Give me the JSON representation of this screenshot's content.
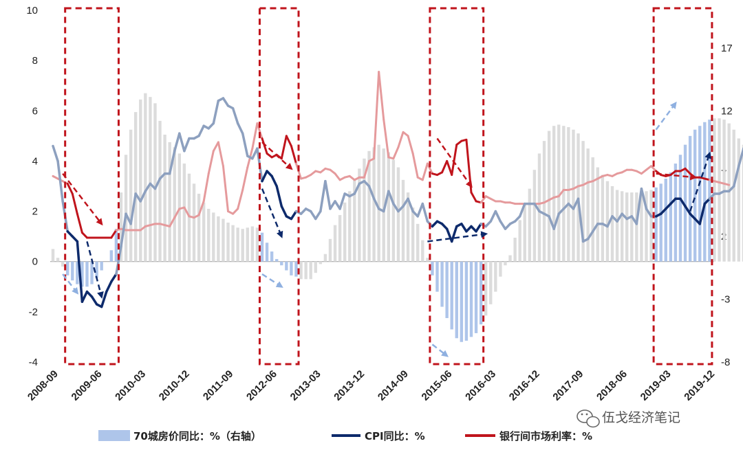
{
  "chart_data": {
    "type": "bar+line",
    "left_axis": {
      "ylim": [
        -4,
        10
      ],
      "ticks": [
        -4,
        -2,
        0,
        2,
        4,
        6,
        8,
        10
      ]
    },
    "right_axis": {
      "ylim": [
        -8,
        20
      ],
      "ticks": [
        -8,
        -3,
        2,
        7,
        12,
        17
      ]
    },
    "x_ticks": [
      "2008-09",
      "2009-06",
      "2010-03",
      "2010-12",
      "2011-09",
      "2012-06",
      "2013-03",
      "2013-12",
      "2014-09",
      "2015-06",
      "2016-03",
      "2016-12",
      "2017-09",
      "2018-06",
      "2019-03",
      "2019-12"
    ],
    "legend": {
      "bars": "70城房价同比：%（右轴）",
      "cpi": "CPI同比：%",
      "rate": "银行间市场利率：%"
    },
    "series_monthly_start": "2008-09",
    "housing_yoy": [
      1.0,
      0.3,
      -0.4,
      -1.1,
      -1.5,
      -1.8,
      -2.0,
      -2.0,
      -1.8,
      -1.3,
      -0.7,
      0.0,
      0.9,
      2.6,
      5.5,
      8.5,
      10.5,
      11.9,
      12.9,
      13.4,
      13.1,
      12.6,
      11.2,
      10.1,
      9.5,
      9.1,
      8.6,
      7.8,
      7.0,
      6.2,
      5.4,
      4.7,
      4.2,
      3.9,
      3.6,
      3.4,
      3.1,
      2.9,
      2.7,
      2.6,
      2.7,
      2.8,
      2.7,
      2.3,
      1.5,
      0.8,
      0.2,
      -0.3,
      -0.7,
      -1.1,
      -1.2,
      -1.4,
      -1.4,
      -1.4,
      -0.9,
      -0.2,
      0.6,
      1.8,
      2.9,
      3.7,
      4.7,
      5.6,
      6.5,
      7.4,
      8.2,
      8.8,
      9.1,
      9.3,
      9.0,
      8.7,
      8.1,
      7.5,
      6.5,
      5.5,
      4.3,
      3.0,
      1.7,
      0.3,
      -1.1,
      -2.4,
      -3.6,
      -4.5,
      -5.4,
      -6.1,
      -6.4,
      -6.3,
      -6.0,
      -5.7,
      -5.0,
      -4.3,
      -3.4,
      -2.4,
      -1.2,
      -0.3,
      0.5,
      1.9,
      3.3,
      4.6,
      5.8,
      7.3,
      8.6,
      9.6,
      10.4,
      10.8,
      10.9,
      10.8,
      10.7,
      10.5,
      10.2,
      9.6,
      9.0,
      8.3,
      7.5,
      6.9,
      6.4,
      6.0,
      5.7,
      5.6,
      5.5,
      5.5,
      5.5,
      5.5,
      5.6,
      5.7,
      5.9,
      6.2,
      6.6,
      7.1,
      7.8,
      8.5,
      9.3,
      10.0,
      10.5,
      10.8,
      11.1,
      11.3,
      11.4,
      11.4,
      11.3,
      11.0,
      10.5,
      9.8,
      9.3,
      8.9,
      8.7,
      8.3
    ],
    "cpi_yoy": [
      4.6,
      4.0,
      2.4,
      1.2,
      1.0,
      0.8,
      -1.6,
      -1.2,
      -1.4,
      -1.7,
      -1.8,
      -1.2,
      -0.8,
      -0.5,
      0.6,
      1.9,
      1.5,
      2.7,
      2.4,
      2.8,
      3.1,
      2.9,
      3.3,
      3.5,
      3.5,
      4.4,
      5.1,
      4.4,
      4.9,
      4.9,
      5.0,
      5.4,
      5.3,
      5.5,
      6.4,
      6.5,
      6.2,
      6.1,
      5.5,
      5.1,
      4.2,
      4.1,
      4.5,
      3.2,
      3.6,
      3.4,
      3.0,
      2.2,
      1.8,
      1.7,
      2.0,
      1.9,
      2.1,
      2.0,
      1.7,
      2.0,
      3.2,
      2.1,
      2.4,
      2.1,
      2.7,
      2.6,
      2.7,
      3.1,
      3.2,
      3.0,
      2.5,
      2.1,
      2.0,
      2.8,
      2.3,
      2.0,
      2.2,
      2.5,
      2.0,
      1.8,
      2.3,
      1.6,
      1.4,
      1.6,
      1.5,
      1.3,
      0.8,
      1.4,
      1.5,
      1.2,
      1.4,
      1.2,
      1.5,
      1.4,
      1.6,
      2.0,
      1.6,
      1.3,
      1.5,
      1.6,
      1.8,
      2.3,
      2.3,
      2.3,
      2.0,
      1.9,
      1.8,
      1.3,
      1.9,
      2.1,
      2.3,
      2.1,
      2.5,
      0.8,
      0.9,
      1.2,
      1.5,
      1.5,
      1.4,
      1.8,
      1.6,
      1.9,
      1.7,
      1.8,
      1.5,
      2.9,
      2.1,
      1.8,
      1.8,
      1.9,
      2.1,
      2.3,
      2.5,
      2.5,
      2.2,
      1.9,
      1.7,
      1.5,
      2.3,
      2.5,
      2.7,
      2.7,
      2.8,
      2.8,
      3.0,
      3.8,
      4.5,
      4.5
    ],
    "cpi_start": "2008-09",
    "interbank_rate": [
      6.8,
      6.6,
      6.4,
      6.2,
      5.4,
      3.8,
      2.3,
      1.9,
      1.9,
      1.9,
      1.9,
      1.9,
      1.9,
      2.5,
      2.6,
      2.5,
      2.5,
      2.5,
      2.5,
      2.8,
      2.9,
      3.0,
      3.0,
      2.9,
      2.8,
      3.5,
      4.2,
      4.3,
      3.6,
      3.5,
      3.7,
      4.8,
      7.0,
      8.8,
      9.5,
      7.6,
      4.0,
      3.8,
      4.2,
      5.7,
      7.5,
      9.0,
      11.0,
      9.8,
      8.6,
      8.3,
      8.5,
      8.2,
      10.0,
      9.2,
      7.8,
      6.6,
      6.7,
      6.9,
      7.2,
      7.1,
      7.4,
      7.3,
      7.0,
      6.5,
      6.7,
      6.8,
      6.5,
      6.7,
      6.7,
      8.0,
      8.2,
      15.1,
      11.3,
      8.3,
      8.2,
      9.1,
      10.3,
      10.0,
      8.6,
      6.7,
      6.5,
      7.8,
      7.0,
      6.9,
      7.1,
      8.0,
      6.9,
      9.3,
      9.6,
      9.7,
      5.5,
      4.8,
      4.7,
      5.2,
      5.0,
      4.8,
      4.8,
      4.7,
      4.7,
      4.6,
      4.6,
      4.6,
      4.6,
      4.6,
      4.6,
      4.7,
      4.9,
      5.1,
      5.2,
      5.7,
      5.7,
      5.8,
      6.0,
      6.1,
      6.3,
      6.4,
      6.6,
      6.8,
      6.9,
      6.8,
      7.0,
      7.1,
      7.3,
      7.3,
      7.2,
      7.0,
      7.3,
      7.6,
      7.2,
      6.9,
      6.8,
      6.9,
      7.2,
      7.2,
      7.4,
      7.0,
      6.7,
      6.7,
      6.6,
      6.5,
      6.4,
      6.3,
      6.2,
      6.1
    ],
    "rate_start": "2008-09",
    "highlight_boxes": [
      "2008-12..2009-10",
      "2012-04..2012-11",
      "2015-03..2016-01",
      "2019-01..2019-12"
    ],
    "watermark": "伍戈经济笔记"
  }
}
